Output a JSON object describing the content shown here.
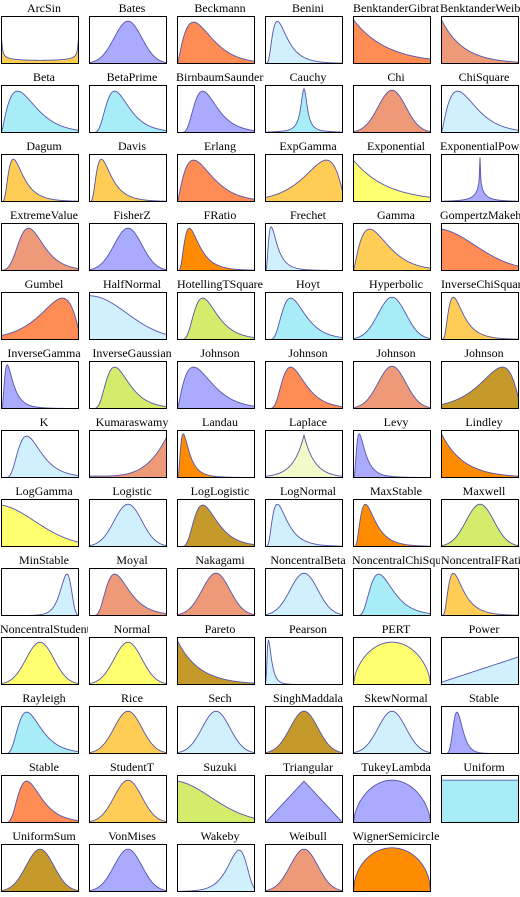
{
  "palette": {
    "blue": "#aaaaff",
    "lightblue": "#cff0fc",
    "cyan": "#a7ecf7",
    "orange": "#ff8b55",
    "salmon": "#ee9a78",
    "deeporange": "#ff8c00",
    "yellow": "#ffff70",
    "gold": "#ffcc55",
    "olive": "#c59a2b",
    "lime": "#d4ec6c",
    "pale": "#f3f9c8",
    "stroke": "#5555aa"
  },
  "distributions": [
    {
      "name": "ArcSin",
      "shape": "arcsin",
      "fill": "gold"
    },
    {
      "name": "Bates",
      "shape": "bell",
      "fill": "blue"
    },
    {
      "name": "Beckmann",
      "shape": "gamma3",
      "fill": "orange"
    },
    {
      "name": "Benini",
      "shape": "rightskew2",
      "fill": "lightblue"
    },
    {
      "name": "BenktanderGibrat",
      "shape": "decay1",
      "fill": "orange"
    },
    {
      "name": "BenktanderWeibull",
      "shape": "decay2",
      "fill": "salmon"
    },
    {
      "name": "Beta",
      "shape": "gamma3",
      "fill": "cyan"
    },
    {
      "name": "BetaPrime",
      "shape": "rightskew1",
      "fill": "cyan"
    },
    {
      "name": "BirnbaumSaunders",
      "shape": "rightskew1",
      "fill": "blue"
    },
    {
      "name": "Cauchy",
      "shape": "cauchy",
      "fill": "cyan"
    },
    {
      "name": "Chi",
      "shape": "bell",
      "fill": "salmon"
    },
    {
      "name": "ChiSquare",
      "shape": "gamma3",
      "fill": "lightblue"
    },
    {
      "name": "Dagum",
      "shape": "rightskew2",
      "fill": "gold"
    },
    {
      "name": "Davis",
      "shape": "rightskew2",
      "fill": "gold"
    },
    {
      "name": "Erlang",
      "shape": "gamma3",
      "fill": "orange"
    },
    {
      "name": "ExpGamma",
      "shape": "leftskew",
      "fill": "gold"
    },
    {
      "name": "Exponential",
      "shape": "exp",
      "fill": "yellow"
    },
    {
      "name": "ExponentialPower",
      "shape": "spike",
      "fill": "blue"
    },
    {
      "name": "ExtremeValue",
      "shape": "gumbel",
      "fill": "salmon"
    },
    {
      "name": "FisherZ",
      "shape": "bell",
      "fill": "blue"
    },
    {
      "name": "FRatio",
      "shape": "rightskew2",
      "fill": "deeporange"
    },
    {
      "name": "Frechet",
      "shape": "rightskew3",
      "fill": "lightblue"
    },
    {
      "name": "Gamma",
      "shape": "gamma3",
      "fill": "gold"
    },
    {
      "name": "GompertzMakeham",
      "shape": "decay3",
      "fill": "orange"
    },
    {
      "name": "Gumbel",
      "shape": "leftskew",
      "fill": "orange"
    },
    {
      "name": "HalfNormal",
      "shape": "halfnormal",
      "fill": "lightblue"
    },
    {
      "name": "HotellingTSquare",
      "shape": "rightskew1",
      "fill": "lime"
    },
    {
      "name": "Hoyt",
      "shape": "rightskew1",
      "fill": "cyan"
    },
    {
      "name": "Hyperbolic",
      "shape": "bell",
      "fill": "cyan"
    },
    {
      "name": "InverseChiSquare",
      "shape": "rightskew2",
      "fill": "gold"
    },
    {
      "name": "InverseGamma",
      "shape": "rightskew3",
      "fill": "blue"
    },
    {
      "name": "InverseGaussian",
      "shape": "rightskew1",
      "fill": "lime"
    },
    {
      "name": "Johnson",
      "shape": "gamma3",
      "fill": "blue"
    },
    {
      "name": "Johnson",
      "shape": "rightskew1",
      "fill": "orange"
    },
    {
      "name": "Johnson",
      "shape": "bell",
      "fill": "salmon"
    },
    {
      "name": "Johnson",
      "shape": "leftskew",
      "fill": "olive"
    },
    {
      "name": "K",
      "shape": "rightskew1",
      "fill": "lightblue"
    },
    {
      "name": "Kumaraswamy",
      "shape": "rising",
      "fill": "salmon"
    },
    {
      "name": "Landau",
      "shape": "rightskew3",
      "fill": "deeporange"
    },
    {
      "name": "Laplace",
      "shape": "laplace",
      "fill": "pale"
    },
    {
      "name": "Levy",
      "shape": "rightskew3",
      "fill": "blue"
    },
    {
      "name": "Lindley",
      "shape": "decay2",
      "fill": "deeporange"
    },
    {
      "name": "LogGamma",
      "shape": "decay3",
      "fill": "yellow"
    },
    {
      "name": "Logistic",
      "shape": "bell",
      "fill": "lightblue"
    },
    {
      "name": "LogLogistic",
      "shape": "rightskew1",
      "fill": "olive"
    },
    {
      "name": "LogNormal",
      "shape": "rightskew2",
      "fill": "lightblue"
    },
    {
      "name": "MaxStable",
      "shape": "rightskew2",
      "fill": "deeporange"
    },
    {
      "name": "Maxwell",
      "shape": "bell",
      "fill": "lime"
    },
    {
      "name": "MinStable",
      "shape": "minstable",
      "fill": "lightblue"
    },
    {
      "name": "Moyal",
      "shape": "rightskew1",
      "fill": "salmon"
    },
    {
      "name": "Nakagami",
      "shape": "bell",
      "fill": "salmon"
    },
    {
      "name": "NoncentralBeta",
      "shape": "bell",
      "fill": "lightblue"
    },
    {
      "name": "NoncentralChiSquare",
      "shape": "rightskew1",
      "fill": "cyan"
    },
    {
      "name": "NoncentralFRatio",
      "shape": "rightskew2",
      "fill": "gold"
    },
    {
      "name": "NoncentralStudentT",
      "shape": "bell",
      "fill": "yellow"
    },
    {
      "name": "Normal",
      "shape": "bell",
      "fill": "yellow"
    },
    {
      "name": "Pareto",
      "shape": "decay2",
      "fill": "olive"
    },
    {
      "name": "Pearson",
      "shape": "pearson",
      "fill": "lightblue"
    },
    {
      "name": "PERT",
      "shape": "dome",
      "fill": "yellow"
    },
    {
      "name": "Power",
      "shape": "line",
      "fill": "lightblue"
    },
    {
      "name": "Rayleigh",
      "shape": "rightskew1",
      "fill": "cyan"
    },
    {
      "name": "Rice",
      "shape": "bell",
      "fill": "gold"
    },
    {
      "name": "Sech",
      "shape": "bell",
      "fill": "lightblue"
    },
    {
      "name": "SinghMaddala",
      "shape": "bell",
      "fill": "olive"
    },
    {
      "name": "SkewNormal",
      "shape": "bell",
      "fill": "lightblue"
    },
    {
      "name": "Stable",
      "shape": "stable1",
      "fill": "blue"
    },
    {
      "name": "Stable",
      "shape": "rightskew1",
      "fill": "orange"
    },
    {
      "name": "StudentT",
      "shape": "bell",
      "fill": "gold"
    },
    {
      "name": "Suzuki",
      "shape": "decay3",
      "fill": "lime"
    },
    {
      "name": "Triangular",
      "shape": "triangle",
      "fill": "blue"
    },
    {
      "name": "TukeyLambda",
      "shape": "dome",
      "fill": "blue"
    },
    {
      "name": "Uniform",
      "shape": "uniform",
      "fill": "cyan"
    },
    {
      "name": "UniformSum",
      "shape": "bell",
      "fill": "olive"
    },
    {
      "name": "VonMises",
      "shape": "bell",
      "fill": "blue"
    },
    {
      "name": "Wakeby",
      "shape": "wakeby",
      "fill": "lightblue"
    },
    {
      "name": "Weibull",
      "shape": "bell",
      "fill": "salmon"
    },
    {
      "name": "WignerSemicircle",
      "shape": "semicircle",
      "fill": "deeporange"
    }
  ]
}
